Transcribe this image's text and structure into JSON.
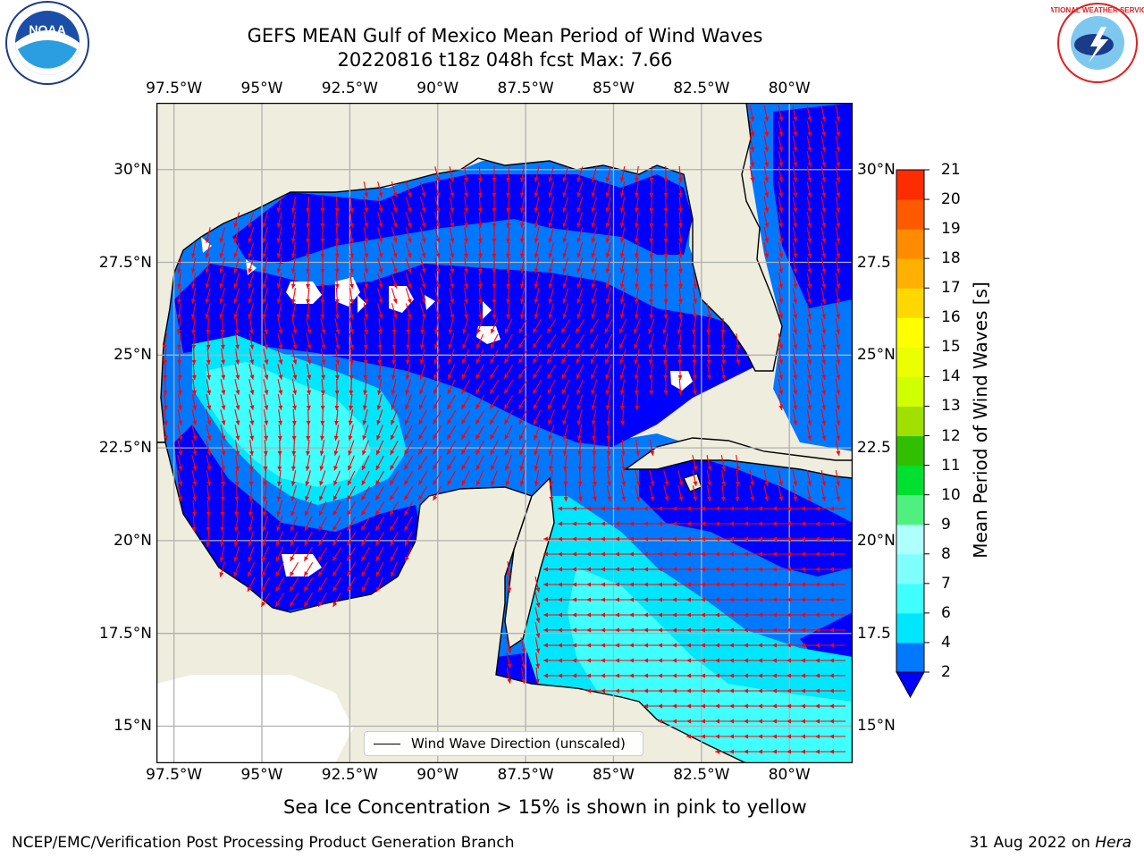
{
  "title": {
    "line1": "GEFS MEAN Gulf of Mexico Mean Period of Wind Waves",
    "line2": "20220816 t18z 048h fcst   Max: 7.66"
  },
  "axes": {
    "lon_ticks": [
      "97.5°W",
      "95°W",
      "92.5°W",
      "90°W",
      "87.5°W",
      "85°W",
      "82.5°W",
      "80°W"
    ],
    "lat_ticks_left": [
      "30°N",
      "27.5°N",
      "25°N",
      "22.5°N",
      "20°N",
      "17.5°N",
      "15°N"
    ],
    "lat_ticks_right": [
      "30°N",
      "27.5",
      "25°N",
      "22.5",
      "20°N",
      "17.5",
      "15°N"
    ]
  },
  "map_extent": {
    "lon_min": -98.0,
    "lon_max": -78.2,
    "lat_min": 14.0,
    "lat_max": 31.8
  },
  "colorbar": {
    "label": "Mean Period of Wind Waves [s]",
    "ticks": [
      "2",
      "4",
      "6",
      "7",
      "8",
      "9",
      "10",
      "11",
      "12",
      "13",
      "14",
      "15",
      "16",
      "17",
      "18",
      "19",
      "20",
      "21"
    ],
    "colors": [
      "#0078ff",
      "#00e6ff",
      "#40ffff",
      "#80ffff",
      "#b0ffff",
      "#50f080",
      "#00e030",
      "#30c000",
      "#a0e000",
      "#d0ff00",
      "#ebff00",
      "#ffff00",
      "#ffd800",
      "#ffb000",
      "#ff8c00",
      "#ff5a00",
      "#ff2c00"
    ],
    "extend_color": "#0000ff"
  },
  "colors": {
    "land": "#efedde",
    "water_low": "#0000ff",
    "water_mid": "#0078ff",
    "water_high": "#00e6ff",
    "water_top": "#40ffff",
    "arrows": "#ff0000",
    "grid": "#b0b0b0"
  },
  "legend": {
    "label": "Wind Wave Direction (unscaled)"
  },
  "notes": {
    "sea_ice": "Sea Ice Concentration > 15% is shown in pink to yellow"
  },
  "footer": {
    "left": "NCEP/EMC/Verification Post Processing Product Generation Branch",
    "right_date": "31 Aug 2022 on ",
    "right_host": "Hera"
  },
  "logos": {
    "noaa": "NOAA",
    "nws": "NATIONAL WEATHER SERVICE"
  }
}
